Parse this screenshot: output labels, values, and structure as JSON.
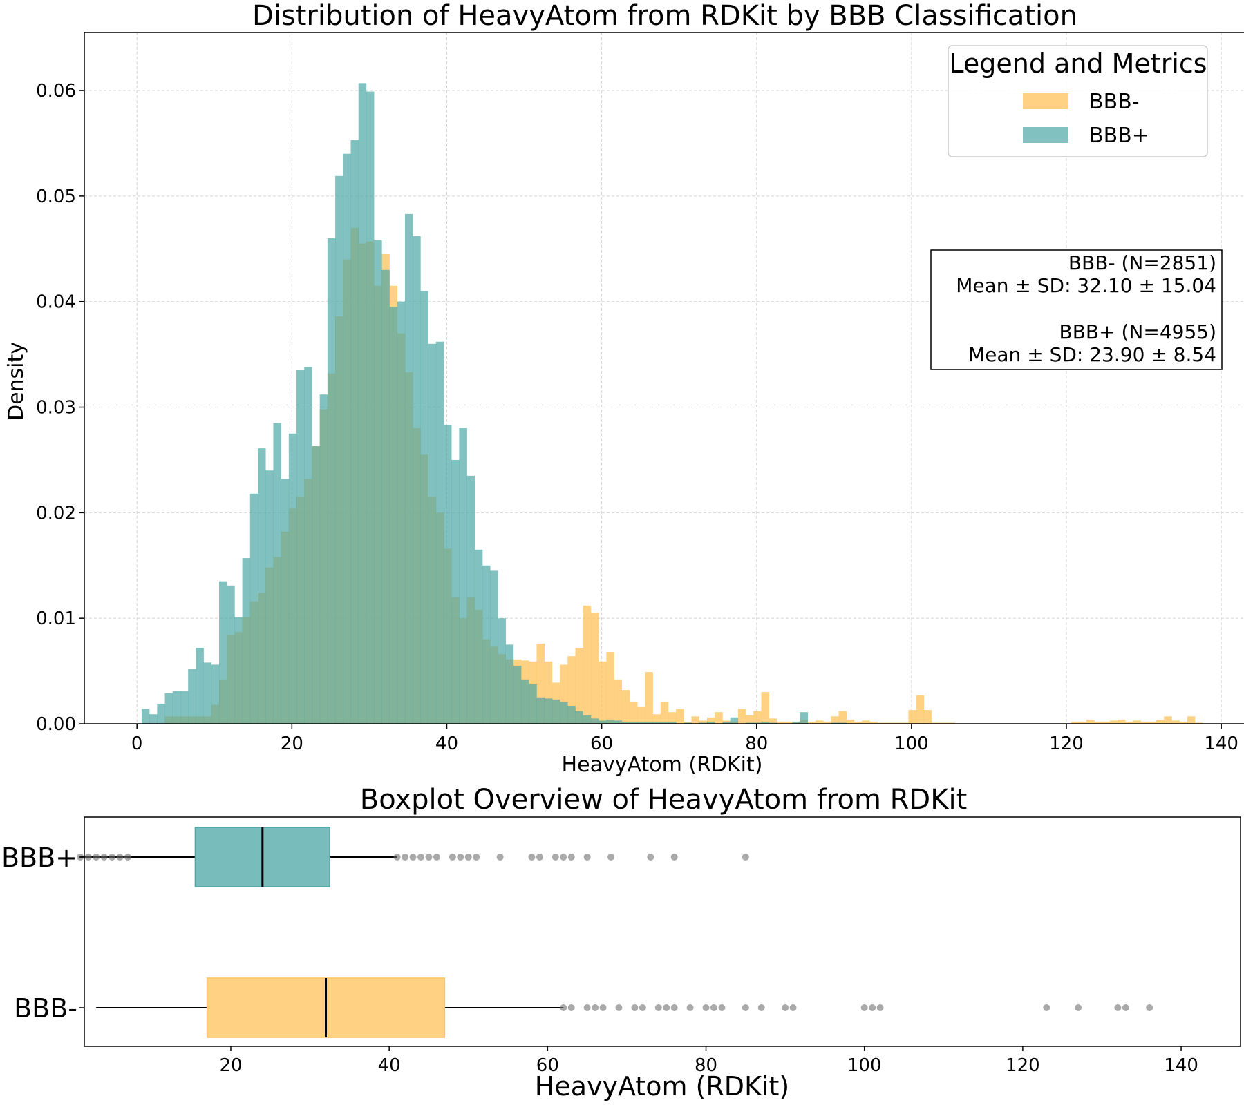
{
  "chart_data": [
    {
      "type": "histogram",
      "title": "Distribution of HeavyAtom from RDKit by BBB Classification",
      "xlabel": "HeavyAtom (RDKit)",
      "ylabel": "Density",
      "xlim": [
        -6.8,
        143.2
      ],
      "ylim": [
        0,
        0.0655
      ],
      "xticks": [
        0,
        20,
        40,
        60,
        80,
        100,
        120,
        140
      ],
      "yticks": [
        0.0,
        0.01,
        0.02,
        0.03,
        0.04,
        0.05,
        0.06
      ],
      "ytick_labels": [
        "0.00",
        "0.01",
        "0.02",
        "0.03",
        "0.04",
        "0.05",
        "0.06"
      ],
      "grid": true,
      "legend": {
        "title": "Legend and Metrics",
        "position": "top-right",
        "entries": [
          {
            "label": "BBB-",
            "color": "#FDC15A"
          },
          {
            "label": "BBB+",
            "color": "#4BA6A4"
          }
        ]
      },
      "metrics_box": {
        "position": "right",
        "lines": [
          "BBB- (N=2851)",
          "Mean ± SD: 32.10 ± 15.04",
          "",
          "BBB+ (N=4955)",
          "Mean ± SD: 23.90 ± 8.54"
        ]
      },
      "overlap_color": "#7FA87C",
      "series": [
        {
          "name": "BBB-",
          "color": "#FDC15A",
          "alpha": 0.75,
          "bins": [
            [
              3.6,
              0.0007
            ],
            [
              4.6,
              0.0007
            ],
            [
              5.6,
              0.0007
            ],
            [
              6.6,
              0.0007
            ],
            [
              7.6,
              0.0007
            ],
            [
              8.6,
              0.0007
            ],
            [
              9.6,
              0.0018
            ],
            [
              10.6,
              0.0042
            ],
            [
              11.6,
              0.0084
            ],
            [
              12.6,
              0.0087
            ],
            [
              13.6,
              0.0101
            ],
            [
              14.6,
              0.0116
            ],
            [
              15.6,
              0.0124
            ],
            [
              16.6,
              0.0148
            ],
            [
              17.6,
              0.0158
            ],
            [
              18.6,
              0.0182
            ],
            [
              19.6,
              0.0204
            ],
            [
              20.6,
              0.0215
            ],
            [
              21.6,
              0.0232
            ],
            [
              22.6,
              0.0263
            ],
            [
              23.6,
              0.0298
            ],
            [
              24.6,
              0.0332
            ],
            [
              25.6,
              0.0386
            ],
            [
              26.6,
              0.044
            ],
            [
              27.6,
              0.047
            ],
            [
              28.6,
              0.0455
            ],
            [
              29.6,
              0.0457
            ],
            [
              30.6,
              0.0415
            ],
            [
              31.6,
              0.0445
            ],
            [
              32.6,
              0.0415
            ],
            [
              33.6,
              0.037
            ],
            [
              34.6,
              0.0333
            ],
            [
              35.6,
              0.028
            ],
            [
              36.6,
              0.0255
            ],
            [
              37.6,
              0.0215
            ],
            [
              38.6,
              0.02
            ],
            [
              39.6,
              0.0166
            ],
            [
              40.6,
              0.012
            ],
            [
              41.6,
              0.01
            ],
            [
              42.6,
              0.012
            ],
            [
              43.6,
              0.0108
            ],
            [
              44.6,
              0.008
            ],
            [
              45.6,
              0.0073
            ],
            [
              46.6,
              0.0066
            ],
            [
              47.6,
              0.0061
            ],
            [
              48.6,
              0.0061
            ],
            [
              49.6,
              0.006
            ],
            [
              50.6,
              0.0059
            ],
            [
              51.6,
              0.0076
            ],
            [
              52.6,
              0.0059
            ],
            [
              53.6,
              0.0039
            ],
            [
              54.6,
              0.0056
            ],
            [
              55.6,
              0.0064
            ],
            [
              56.6,
              0.0072
            ],
            [
              57.6,
              0.0112
            ],
            [
              58.6,
              0.0105
            ],
            [
              59.6,
              0.0059
            ],
            [
              60.6,
              0.0068
            ],
            [
              61.6,
              0.0042
            ],
            [
              62.6,
              0.0032
            ],
            [
              63.6,
              0.0021
            ],
            [
              64.6,
              0.0016
            ],
            [
              65.6,
              0.0049
            ],
            [
              66.6,
              0.0009
            ],
            [
              67.6,
              0.0021
            ],
            [
              68.6,
              0.0011
            ],
            [
              69.6,
              0.0014
            ],
            [
              70.6,
              0.0002
            ],
            [
              71.6,
              0.0007
            ],
            [
              72.6,
              0.0003
            ],
            [
              73.6,
              0.0006
            ],
            [
              74.6,
              0.0011
            ],
            [
              75.6,
              0.0003
            ],
            [
              76.6,
              0.0002
            ],
            [
              77.6,
              0.0014
            ],
            [
              78.6,
              0.0008
            ],
            [
              79.6,
              0.0012
            ],
            [
              80.6,
              0.003
            ],
            [
              81.6,
              0.0005
            ],
            [
              82.6,
              0.0002
            ],
            [
              83.6,
              0.0002
            ],
            [
              84.6,
              0.0002
            ],
            [
              85.6,
              0.0004
            ],
            [
              86.6,
              0.0002
            ],
            [
              87.6,
              0.0003
            ],
            [
              88.6,
              0.0002
            ],
            [
              89.6,
              0.0007
            ],
            [
              90.6,
              0.0012
            ],
            [
              91.6,
              0.0004
            ],
            [
              92.6,
              0.0002
            ],
            [
              93.6,
              0.0003
            ],
            [
              94.6,
              0.0002
            ],
            [
              95.6,
              0.0001
            ],
            [
              96.6,
              0.0001
            ],
            [
              97.6,
              0.0001
            ],
            [
              98.6,
              0.0001
            ],
            [
              99.6,
              0.0013
            ],
            [
              100.6,
              0.0027
            ],
            [
              101.6,
              0.0013
            ],
            [
              102.6,
              0.0001
            ],
            [
              103.6,
              0.0001
            ],
            [
              104.6,
              0.0001
            ],
            [
              120.6,
              0.0002
            ],
            [
              121.6,
              0.0002
            ],
            [
              122.6,
              0.0004
            ],
            [
              123.6,
              0.0002
            ],
            [
              124.6,
              0.0002
            ],
            [
              125.6,
              0.0003
            ],
            [
              126.6,
              0.0004
            ],
            [
              127.6,
              0.0002
            ],
            [
              128.6,
              0.0003
            ],
            [
              129.6,
              0.0002
            ],
            [
              130.6,
              0.0002
            ],
            [
              131.6,
              0.0004
            ],
            [
              132.6,
              0.0007
            ],
            [
              133.6,
              0.0003
            ],
            [
              134.6,
              0.0002
            ],
            [
              135.6,
              0.0007
            ],
            [
              136.6,
              0.0001
            ]
          ]
        },
        {
          "name": "BBB+",
          "color": "#4BA6A4",
          "alpha": 0.7,
          "bins": [
            [
              0.6,
              0.0014
            ],
            [
              1.6,
              0.0009
            ],
            [
              2.6,
              0.0019
            ],
            [
              3.6,
              0.0029
            ],
            [
              4.6,
              0.0031
            ],
            [
              5.6,
              0.0031
            ],
            [
              6.6,
              0.0052
            ],
            [
              7.6,
              0.0072
            ],
            [
              8.6,
              0.0058
            ],
            [
              9.6,
              0.0056
            ],
            [
              10.6,
              0.0135
            ],
            [
              11.6,
              0.0131
            ],
            [
              12.6,
              0.0101
            ],
            [
              13.6,
              0.0157
            ],
            [
              14.6,
              0.0218
            ],
            [
              15.6,
              0.0261
            ],
            [
              16.6,
              0.024
            ],
            [
              17.6,
              0.0285
            ],
            [
              18.6,
              0.0232
            ],
            [
              19.6,
              0.0275
            ],
            [
              20.6,
              0.0335
            ],
            [
              21.6,
              0.0338
            ],
            [
              22.6,
              0.0263
            ],
            [
              23.6,
              0.0312
            ],
            [
              24.6,
              0.046
            ],
            [
              25.6,
              0.0519
            ],
            [
              26.6,
              0.054
            ],
            [
              27.6,
              0.0553
            ],
            [
              28.6,
              0.0607
            ],
            [
              29.6,
              0.0599
            ],
            [
              30.6,
              0.0458
            ],
            [
              31.6,
              0.043
            ],
            [
              32.6,
              0.0395
            ],
            [
              33.6,
              0.04
            ],
            [
              34.6,
              0.0483
            ],
            [
              35.6,
              0.0462
            ],
            [
              36.6,
              0.041
            ],
            [
              37.6,
              0.036
            ],
            [
              38.6,
              0.0362
            ],
            [
              39.6,
              0.0283
            ],
            [
              40.6,
              0.025
            ],
            [
              41.6,
              0.028
            ],
            [
              42.6,
              0.0235
            ],
            [
              43.6,
              0.0165
            ],
            [
              44.6,
              0.015
            ],
            [
              45.6,
              0.0145
            ],
            [
              46.6,
              0.01
            ],
            [
              47.6,
              0.0075
            ],
            [
              48.6,
              0.0055
            ],
            [
              49.6,
              0.0042
            ],
            [
              50.6,
              0.0038
            ],
            [
              51.6,
              0.0025
            ],
            [
              52.6,
              0.0024
            ],
            [
              53.6,
              0.0023
            ],
            [
              54.6,
              0.0021
            ],
            [
              55.6,
              0.0017
            ],
            [
              56.6,
              0.0012
            ],
            [
              57.6,
              0.0008
            ],
            [
              58.6,
              0.0005
            ],
            [
              59.6,
              0.0003
            ],
            [
              60.6,
              0.0004
            ],
            [
              61.6,
              0.0003
            ],
            [
              62.6,
              0.0002
            ],
            [
              63.6,
              0.0002
            ],
            [
              64.6,
              0.0002
            ],
            [
              65.6,
              0.0002
            ],
            [
              66.6,
              0.0002
            ],
            [
              67.6,
              0.0002
            ],
            [
              68.6,
              0.0002
            ],
            [
              70.6,
              0.0001
            ],
            [
              72.6,
              0.0001
            ],
            [
              73.6,
              0.0002
            ],
            [
              75.6,
              0.0002
            ],
            [
              76.6,
              0.0006
            ],
            [
              78.6,
              0.0001
            ],
            [
              79.6,
              0.0001
            ],
            [
              80.6,
              0.0002
            ],
            [
              81.6,
              0.0001
            ],
            [
              84.6,
              0.0002
            ],
            [
              85.6,
              0.0011
            ],
            [
              89.6,
              0.0001
            ],
            [
              90.6,
              0.0001
            ]
          ]
        }
      ]
    },
    {
      "type": "boxplot",
      "title": "Boxplot Overview of HeavyAtom from RDKit",
      "xlabel": "HeavyAtom (RDKit)",
      "xlim": [
        1.5,
        147.5
      ],
      "xticks": [
        20,
        40,
        60,
        80,
        100,
        120,
        140
      ],
      "categories": [
        "BBB+",
        "BBB-"
      ],
      "boxes": [
        {
          "name": "BBB+",
          "color": "#4BA6A4",
          "whisker_low": 1,
          "q1": 15.5,
          "median": 24,
          "q3": 32.5,
          "whisker_high": 41,
          "outliers_low": [
            1,
            2,
            3,
            4,
            5,
            6,
            7
          ],
          "outliers_high": [
            41,
            42,
            43,
            44,
            45,
            46,
            48,
            49,
            50,
            51,
            54,
            58,
            59,
            61,
            62,
            63,
            65,
            68,
            73,
            76,
            85
          ]
        },
        {
          "name": "BBB-",
          "color": "#FDC15A",
          "whisker_low": 3,
          "q1": 17,
          "median": 32,
          "q3": 47,
          "whisker_high": 62,
          "outliers_low": [],
          "outliers_high": [
            62,
            63,
            65,
            66,
            67,
            69,
            71,
            72,
            74,
            75,
            76,
            78,
            80,
            81,
            82,
            85,
            87,
            90,
            91,
            100,
            101,
            102,
            123,
            127,
            132,
            133,
            136
          ]
        }
      ]
    }
  ]
}
